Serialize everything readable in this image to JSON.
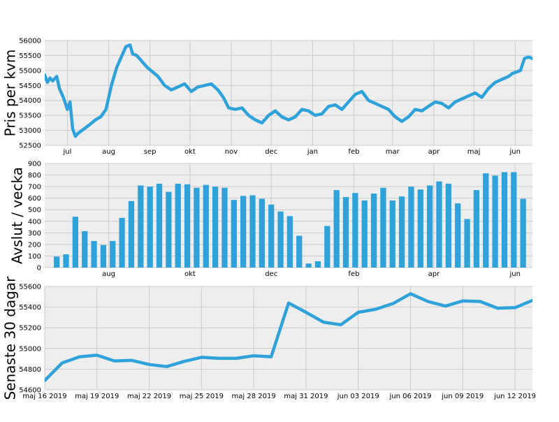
{
  "colors": {
    "series": "#30a2da",
    "background": "#eeeeee",
    "grid": "#cbcbcb"
  },
  "chart_data": [
    {
      "type": "line",
      "ylabel": "Pris per kvm",
      "ylim": [
        52500,
        56000
      ],
      "xlim": [
        "2019-06-14",
        "2020-06-14"
      ],
      "yticks": [
        52500,
        53000,
        53500,
        54000,
        54500,
        55000,
        55500,
        56000
      ],
      "xticks": [
        {
          "x": "2019-07-01",
          "label": "jul"
        },
        {
          "x": "2019-08-01",
          "label": "aug"
        },
        {
          "x": "2019-09-01",
          "label": "sep"
        },
        {
          "x": "2019-10-01",
          "label": "okt"
        },
        {
          "x": "2019-11-01",
          "label": "nov"
        },
        {
          "x": "2019-12-01",
          "label": "dec"
        },
        {
          "x": "2020-01-01",
          "label": "jan"
        },
        {
          "x": "2020-02-01",
          "label": "feb"
        },
        {
          "x": "2020-03-01",
          "label": "mar"
        },
        {
          "x": "2020-04-01",
          "label": "apr"
        },
        {
          "x": "2020-05-01",
          "label": "maj"
        },
        {
          "x": "2020-06-01",
          "label": "jun"
        }
      ],
      "grid": true,
      "x": [
        "2019-06-14",
        "2019-06-16",
        "2019-06-18",
        "2019-06-20",
        "2019-06-23",
        "2019-06-25",
        "2019-06-28",
        "2019-07-01",
        "2019-07-03",
        "2019-07-05",
        "2019-07-07",
        "2019-07-09",
        "2019-07-12",
        "2019-07-15",
        "2019-07-18",
        "2019-07-22",
        "2019-07-26",
        "2019-07-30",
        "2019-08-03",
        "2019-08-07",
        "2019-08-11",
        "2019-08-14",
        "2019-08-17",
        "2019-08-19",
        "2019-08-22",
        "2019-08-26",
        "2019-08-30",
        "2019-09-03",
        "2019-09-07",
        "2019-09-12",
        "2019-09-17",
        "2019-09-22",
        "2019-09-27",
        "2019-10-02",
        "2019-10-07",
        "2019-10-12",
        "2019-10-17",
        "2019-10-22",
        "2019-10-26",
        "2019-10-30",
        "2019-11-04",
        "2019-11-09",
        "2019-11-14",
        "2019-11-19",
        "2019-11-24",
        "2019-11-29",
        "2019-12-04",
        "2019-12-09",
        "2019-12-14",
        "2019-12-19",
        "2019-12-24",
        "2019-12-29",
        "2020-01-03",
        "2020-01-08",
        "2020-01-13",
        "2020-01-18",
        "2020-01-23",
        "2020-01-28",
        "2020-02-02",
        "2020-02-07",
        "2020-02-12",
        "2020-02-17",
        "2020-02-22",
        "2020-02-27",
        "2020-03-03",
        "2020-03-08",
        "2020-03-13",
        "2020-03-18",
        "2020-03-23",
        "2020-03-28",
        "2020-04-02",
        "2020-04-07",
        "2020-04-12",
        "2020-04-17",
        "2020-04-22",
        "2020-04-27",
        "2020-05-02",
        "2020-05-07",
        "2020-05-12",
        "2020-05-17",
        "2020-05-22",
        "2020-05-27",
        "2020-05-30",
        "2020-06-02",
        "2020-06-05",
        "2020-06-08",
        "2020-06-11",
        "2020-06-14"
      ],
      "y": [
        54850,
        54600,
        54750,
        54650,
        54800,
        54400,
        54100,
        53700,
        53950,
        53050,
        52800,
        52900,
        53000,
        53100,
        53200,
        53350,
        53450,
        53700,
        54500,
        55100,
        55500,
        55800,
        55850,
        55550,
        55500,
        55300,
        55100,
        54950,
        54800,
        54500,
        54350,
        54450,
        54550,
        54300,
        54450,
        54500,
        54550,
        54350,
        54100,
        53750,
        53700,
        53750,
        53500,
        53350,
        53250,
        53500,
        53650,
        53450,
        53350,
        53450,
        53700,
        53650,
        53500,
        53550,
        53800,
        53850,
        53700,
        53950,
        54200,
        54300,
        54000,
        53900,
        53800,
        53700,
        53450,
        53300,
        53450,
        53700,
        53650,
        53800,
        53950,
        53900,
        53750,
        53950,
        54050,
        54150,
        54250,
        54100,
        54400,
        54600,
        54700,
        54800,
        54900,
        54950,
        55000,
        55400,
        55450,
        55400
      ]
    },
    {
      "type": "bar",
      "ylabel": "Avslut / vecka",
      "ylim": [
        0,
        900
      ],
      "xlim": [
        "2019-06-14",
        "2020-06-14"
      ],
      "yticks": [
        0,
        100,
        200,
        300,
        400,
        500,
        600,
        700,
        800,
        900
      ],
      "xticks": [
        {
          "x": "2019-08-01",
          "label": "aug"
        },
        {
          "x": "2019-10-01",
          "label": "okt"
        },
        {
          "x": "2019-12-01",
          "label": "dec"
        },
        {
          "x": "2020-02-01",
          "label": "feb"
        },
        {
          "x": "2020-04-01",
          "label": "apr"
        },
        {
          "x": "2020-06-01",
          "label": "jun"
        }
      ],
      "grid": true,
      "week_start": [
        "2019-06-23",
        "2019-06-30",
        "2019-07-07",
        "2019-07-14",
        "2019-07-21",
        "2019-07-28",
        "2019-08-04",
        "2019-08-11",
        "2019-08-18",
        "2019-08-25",
        "2019-09-01",
        "2019-09-08",
        "2019-09-15",
        "2019-09-22",
        "2019-09-29",
        "2019-10-06",
        "2019-10-13",
        "2019-10-20",
        "2019-10-27",
        "2019-11-03",
        "2019-11-10",
        "2019-11-17",
        "2019-11-24",
        "2019-12-01",
        "2019-12-08",
        "2019-12-15",
        "2019-12-22",
        "2019-12-29",
        "2020-01-05",
        "2020-01-12",
        "2020-01-19",
        "2020-01-26",
        "2020-02-02",
        "2020-02-09",
        "2020-02-16",
        "2020-02-23",
        "2020-03-01",
        "2020-03-08",
        "2020-03-15",
        "2020-03-22",
        "2020-03-29",
        "2020-04-05",
        "2020-04-12",
        "2020-04-19",
        "2020-04-26",
        "2020-05-03",
        "2020-05-10",
        "2020-05-17",
        "2020-05-24",
        "2020-05-31",
        "2020-06-07"
      ],
      "values": [
        95,
        115,
        440,
        315,
        230,
        195,
        230,
        430,
        575,
        710,
        700,
        725,
        655,
        725,
        720,
        690,
        715,
        700,
        690,
        585,
        620,
        625,
        595,
        545,
        485,
        445,
        275,
        35,
        55,
        360,
        670,
        610,
        645,
        580,
        640,
        690,
        580,
        615,
        700,
        675,
        710,
        745,
        725,
        555,
        420,
        670,
        815,
        795,
        825,
        825,
        595
      ]
    },
    {
      "type": "line",
      "ylabel": "Senaste 30 dagar",
      "ylim": [
        54600,
        55600
      ],
      "xlim": [
        "2019-05-16",
        "2019-06-13"
      ],
      "yticks": [
        54600,
        54800,
        55000,
        55200,
        55400,
        55600
      ],
      "xticks": [
        {
          "x": "2019-05-16",
          "label": "maj 16 2019"
        },
        {
          "x": "2019-05-19",
          "label": "maj 19 2019"
        },
        {
          "x": "2019-05-22",
          "label": "maj 22 2019"
        },
        {
          "x": "2019-05-25",
          "label": "maj 25 2019"
        },
        {
          "x": "2019-05-28",
          "label": "maj 28 2019"
        },
        {
          "x": "2019-05-31",
          "label": "maj 31 2019"
        },
        {
          "x": "2019-06-03",
          "label": "jun 03 2019"
        },
        {
          "x": "2019-06-06",
          "label": "jun 06 2019"
        },
        {
          "x": "2019-06-09",
          "label": "jun 09 2019"
        },
        {
          "x": "2019-06-12",
          "label": "jun 12 2019"
        }
      ],
      "grid": true,
      "x": [
        "2019-05-16",
        "2019-05-17",
        "2019-05-18",
        "2019-05-19",
        "2019-05-20",
        "2019-05-21",
        "2019-05-22",
        "2019-05-23",
        "2019-05-24",
        "2019-05-25",
        "2019-05-26",
        "2019-05-27",
        "2019-05-28",
        "2019-05-29",
        "2019-05-30",
        "2019-05-31",
        "2019-06-01",
        "2019-06-02",
        "2019-06-03",
        "2019-06-04",
        "2019-06-05",
        "2019-06-06",
        "2019-06-07",
        "2019-06-08",
        "2019-06-09",
        "2019-06-10",
        "2019-06-11",
        "2019-06-12",
        "2019-06-13"
      ],
      "y": [
        54690,
        54860,
        54920,
        54935,
        54880,
        54885,
        54845,
        54825,
        54875,
        54915,
        54905,
        54905,
        54930,
        54920,
        55440,
        55350,
        55255,
        55230,
        55350,
        55380,
        55435,
        55530,
        55455,
        55410,
        55460,
        55455,
        55390,
        55395,
        55465
      ]
    }
  ]
}
